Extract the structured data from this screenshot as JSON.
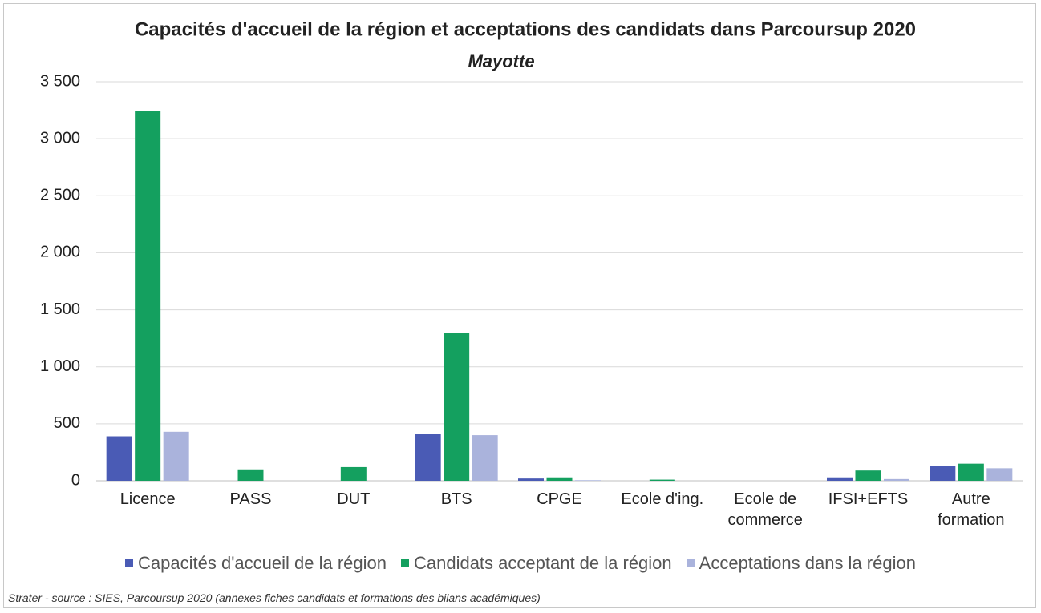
{
  "chart_data": {
    "type": "bar",
    "title": "Capacités d'accueil de la région et acceptations des candidats dans Parcoursup 2020",
    "subtitle": "Mayotte",
    "categories": [
      "Licence",
      "PASS",
      "DUT",
      "BTS",
      "CPGE",
      "Ecole d'ing.",
      "Ecole de commerce",
      "IFSI+EFTS",
      "Autre formation"
    ],
    "series": [
      {
        "name": "Capacités d'accueil de la région",
        "color": "#4a5bb5",
        "values": [
          390,
          0,
          0,
          410,
          20,
          0,
          0,
          30,
          130
        ]
      },
      {
        "name": "Candidats acceptant de la région",
        "color": "#14a05f",
        "values": [
          3240,
          100,
          120,
          1300,
          30,
          10,
          0,
          90,
          150
        ]
      },
      {
        "name": "Acceptations dans la région",
        "color": "#aab3dc",
        "values": [
          430,
          0,
          0,
          400,
          5,
          0,
          0,
          15,
          110
        ]
      }
    ],
    "ylim": [
      0,
      3500
    ],
    "yticks": [
      0,
      500,
      {
        "value": 1000,
        "label": "1 000"
      },
      {
        "value": 1500,
        "label": "1 500"
      },
      {
        "value": 2000,
        "label": "2 000"
      },
      {
        "value": 2500,
        "label": "2 500"
      },
      {
        "value": 3000,
        "label": "3 000"
      },
      {
        "value": 3500,
        "label": "3 500"
      }
    ],
    "grid": true,
    "legend": "bottom",
    "source": "Strater - source : SIES, Parcoursup 2020 (annexes fiches candidats et formations des bilans académiques)"
  }
}
